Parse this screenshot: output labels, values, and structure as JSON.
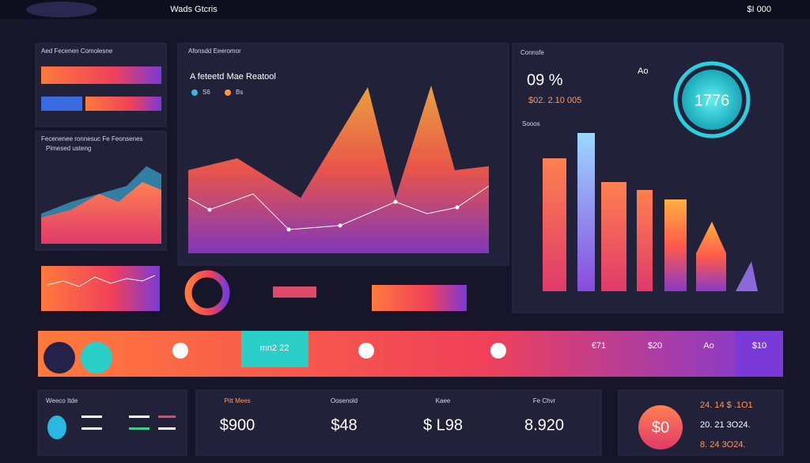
{
  "header": {
    "title": "Wads Gtcris",
    "right": "$I 000"
  },
  "left_panel": {
    "title": "Aed Fecenen Comolesne",
    "subtitle": "Fecenenee ronnesuc Fe Feonsenes",
    "chart_title": "Pimesed usteng"
  },
  "center_panel": {
    "title": "Afonsdd Eeeromor",
    "chart_title": "A feteetd Mae Reatool",
    "legend": [
      "S6",
      "Bs"
    ]
  },
  "right_panel": {
    "title": "Connsfe",
    "percent": "09 %",
    "amount": "$02. 2.10 005",
    "gauge": "1776",
    "gauge_label": "Ao",
    "section": "Sooos"
  },
  "band": {
    "highlight": "mn2 22",
    "stats": [
      "€71",
      "$20",
      "Ao",
      "$10"
    ]
  },
  "cards": [
    {
      "title": "Weeco Itde"
    },
    {
      "title": "Pitt Mees",
      "value": "$900"
    },
    {
      "title": "Oosenold",
      "value": "$48"
    },
    {
      "title": "Kaee",
      "value": "$ L98"
    },
    {
      "title": "Fe Chvr",
      "value": "8.920"
    },
    {
      "gauge": "$0",
      "lines": [
        "24. 14 $ .1O1",
        "20. 21 3O24.",
        "8. 24 3O24."
      ]
    }
  ]
}
